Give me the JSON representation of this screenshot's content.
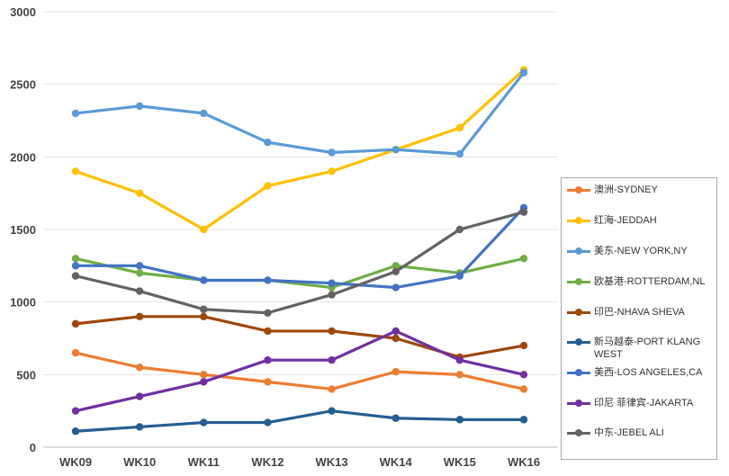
{
  "chart_data": {
    "type": "line",
    "title": "",
    "xlabel": "",
    "ylabel": "",
    "categories": [
      "WK09",
      "WK10",
      "WK11",
      "WK12",
      "WK13",
      "WK14",
      "WK15",
      "WK16"
    ],
    "yticks": [
      "0",
      "500",
      "1000",
      "1500",
      "2000",
      "2500",
      "3000"
    ],
    "ylim": [
      0,
      3000
    ],
    "grid": true,
    "legend_position": "right",
    "series": [
      {
        "name": "澳洲-SYDNEY",
        "color": "#ED7D31",
        "values": [
          650,
          550,
          500,
          450,
          400,
          520,
          500,
          400
        ]
      },
      {
        "name": "红海-JEDDAH",
        "color": "#FFC000",
        "values": [
          1900,
          1750,
          1500,
          1800,
          1900,
          2050,
          2200,
          2600
        ]
      },
      {
        "name": "美东-NEW YORK,NY",
        "color": "#5B9BD5",
        "values": [
          2300,
          2350,
          2300,
          2100,
          2030,
          2050,
          2020,
          2580
        ]
      },
      {
        "name": "欧基港-ROTTERDAM,NL",
        "color": "#70AD47",
        "values": [
          1300,
          1200,
          1150,
          1150,
          1100,
          1250,
          1200,
          1300
        ]
      },
      {
        "name": "印巴-NHAVA SHEVA",
        "color": "#9E480E",
        "values": [
          850,
          900,
          900,
          800,
          800,
          750,
          620,
          700
        ]
      },
      {
        "name": "新马越泰-PORT KLANG WEST",
        "color": "#255E91",
        "values": [
          110,
          140,
          170,
          170,
          250,
          200,
          190,
          190
        ]
      },
      {
        "name": "美西-LOS ANGELES,CA",
        "color": "#4472C4",
        "values": [
          1250,
          1250,
          1150,
          1150,
          1130,
          1100,
          1180,
          1650
        ]
      },
      {
        "name": "印尼 菲律宾-JAKARTA",
        "color": "#7030A0",
        "values": [
          250,
          350,
          450,
          600,
          600,
          800,
          600,
          500
        ]
      },
      {
        "name": "中东-JEBEL ALI",
        "color": "#636363",
        "values": [
          1180,
          1075,
          950,
          925,
          1050,
          1210,
          1500,
          1620
        ]
      }
    ]
  }
}
